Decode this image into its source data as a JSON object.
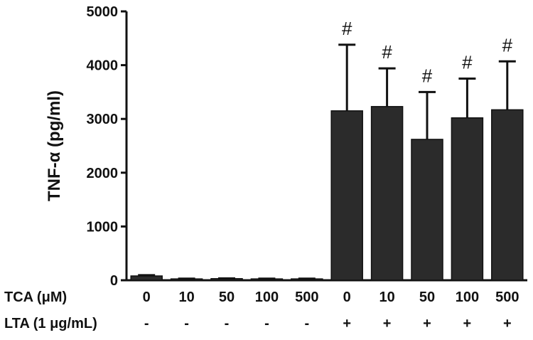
{
  "chart_data": {
    "type": "bar",
    "ylabel": "TNF-α (pg/ml)",
    "ylim": [
      0,
      5000
    ],
    "yticks": [
      "0",
      "1000",
      "2000",
      "3000",
      "4000",
      "5000"
    ],
    "ytick_values": [
      0,
      1000,
      2000,
      3000,
      4000,
      5000
    ],
    "values": [
      80,
      25,
      30,
      25,
      25,
      3150,
      3230,
      2620,
      3020,
      3170
    ],
    "errors": [
      15,
      5,
      5,
      5,
      5,
      1230,
      710,
      880,
      730,
      900
    ],
    "significance": [
      "",
      "",
      "",
      "",
      "",
      "#",
      "#",
      "#",
      "#",
      "#"
    ],
    "bar_color": "#2b2b2b",
    "rows": [
      {
        "label": "TCA (μM)",
        "values": [
          "0",
          "10",
          "50",
          "100",
          "500",
          "0",
          "10",
          "50",
          "100",
          "500"
        ]
      },
      {
        "label": "LTA (1 μg/mL)",
        "values": [
          "-",
          "-",
          "-",
          "-",
          "-",
          "+",
          "+",
          "+",
          "+",
          "+"
        ]
      }
    ]
  }
}
